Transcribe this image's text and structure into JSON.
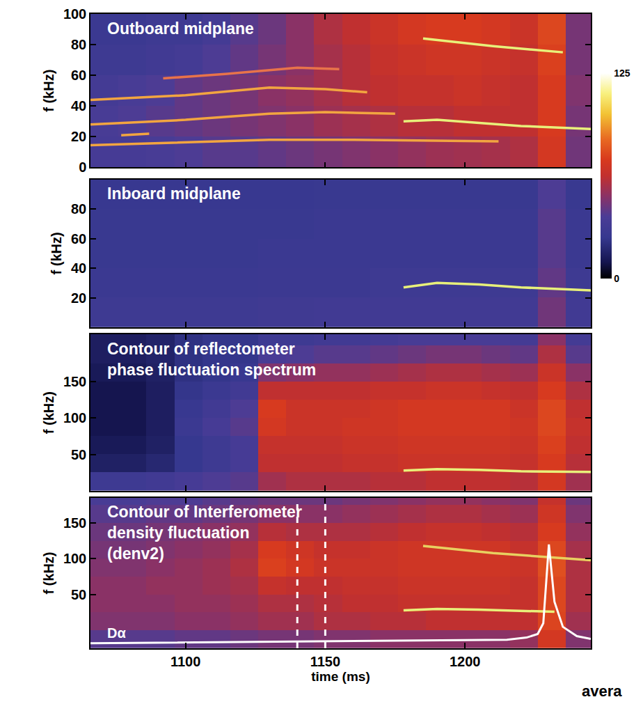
{
  "chart_data": [
    {
      "type": "heatmap",
      "title": "Outboard midplane",
      "y_label": "f (kHz)",
      "tick_labels": "y",
      "grid": false,
      "xlim": [
        1066,
        1245
      ],
      "xticks": [
        1100,
        1150,
        1200
      ],
      "ylim": [
        0,
        100
      ],
      "yticks": [
        0,
        20,
        40,
        60,
        80,
        100
      ],
      "colorbar_range": [
        0,
        125
      ],
      "colorbar_ticks": [
        0,
        125
      ],
      "x": [
        1071,
        1081,
        1091,
        1101,
        1111,
        1121,
        1131,
        1141,
        1151,
        1161,
        1171,
        1181,
        1191,
        1201,
        1211,
        1221,
        1231,
        1241
      ],
      "y": [
        10,
        30,
        50,
        70,
        90
      ],
      "z": [
        [
          35,
          35,
          36,
          38,
          40,
          40,
          42,
          44,
          46,
          48,
          50,
          52,
          54,
          55,
          56,
          58,
          70,
          45
        ],
        [
          36,
          38,
          40,
          42,
          44,
          46,
          48,
          50,
          54,
          56,
          58,
          60,
          60,
          62,
          62,
          62,
          72,
          46
        ],
        [
          34,
          36,
          38,
          42,
          44,
          46,
          50,
          52,
          56,
          60,
          62,
          64,
          64,
          66,
          64,
          62,
          72,
          48
        ],
        [
          30,
          30,
          32,
          34,
          38,
          42,
          46,
          50,
          56,
          60,
          64,
          66,
          68,
          68,
          66,
          64,
          74,
          46
        ],
        [
          28,
          28,
          30,
          30,
          34,
          40,
          44,
          50,
          58,
          62,
          66,
          70,
          72,
          72,
          70,
          66,
          76,
          46
        ]
      ],
      "series": [
        {
          "type": "line",
          "color": "#f2a540",
          "x": [
            1066,
            1100,
            1130,
            1160,
            1190,
            1212
          ],
          "values": [
            14.5,
            16.5,
            18,
            18,
            17.5,
            17
          ]
        },
        {
          "type": "line",
          "color": "#f2a540",
          "x": [
            1077,
            1087
          ],
          "values": [
            21,
            22
          ]
        },
        {
          "type": "line",
          "color": "#f2a540",
          "x": [
            1066,
            1100,
            1130,
            1150,
            1175
          ],
          "values": [
            28,
            31,
            35,
            36,
            35
          ]
        },
        {
          "type": "line",
          "color": "#e8f07a",
          "x": [
            1178,
            1190,
            1205,
            1220,
            1245
          ],
          "values": [
            30,
            31,
            29,
            27,
            25
          ]
        },
        {
          "type": "line",
          "color": "#f2a540",
          "x": [
            1066,
            1100,
            1130,
            1150,
            1165
          ],
          "values": [
            44,
            47,
            52,
            51,
            49
          ]
        },
        {
          "type": "line",
          "color": "#e8734a",
          "x": [
            1092,
            1115,
            1140,
            1155
          ],
          "values": [
            58,
            61,
            65,
            64
          ]
        },
        {
          "type": "line",
          "color": "#e8f07a",
          "x": [
            1185,
            1210,
            1235
          ],
          "values": [
            84,
            79,
            75
          ]
        }
      ]
    },
    {
      "type": "heatmap",
      "title": "Inboard midplane",
      "y_label": "f (kHz)",
      "tick_labels": "y",
      "grid": false,
      "xlim": [
        1066,
        1245
      ],
      "xticks": [
        1100,
        1150,
        1200
      ],
      "ylim": [
        0,
        100
      ],
      "yticks": [
        20,
        40,
        60,
        80
      ],
      "x": [
        1071,
        1081,
        1091,
        1101,
        1111,
        1121,
        1131,
        1141,
        1151,
        1161,
        1171,
        1181,
        1191,
        1201,
        1211,
        1221,
        1231,
        1241
      ],
      "y": [
        10,
        30,
        50,
        70,
        90
      ],
      "z": [
        [
          30,
          30,
          30,
          30,
          30,
          30,
          31,
          31,
          32,
          32,
          32,
          32,
          32,
          32,
          32,
          32,
          45,
          32
        ],
        [
          28,
          28,
          28,
          28,
          28,
          28,
          29,
          29,
          29,
          29,
          30,
          30,
          30,
          30,
          30,
          30,
          42,
          30
        ],
        [
          27,
          27,
          27,
          27,
          27,
          27,
          28,
          28,
          28,
          28,
          28,
          28,
          28,
          28,
          28,
          28,
          40,
          28
        ],
        [
          27,
          27,
          27,
          27,
          27,
          27,
          27,
          27,
          28,
          28,
          28,
          28,
          28,
          28,
          28,
          28,
          40,
          28
        ],
        [
          26,
          26,
          26,
          26,
          26,
          26,
          26,
          26,
          27,
          27,
          27,
          27,
          27,
          27,
          27,
          27,
          38,
          27
        ]
      ],
      "series": [
        {
          "type": "line",
          "color": "#e8f07a",
          "x": [
            1178,
            1190,
            1205,
            1220,
            1245
          ],
          "values": [
            27,
            30,
            29,
            27,
            25
          ]
        }
      ]
    },
    {
      "type": "heatmap",
      "title": "Contour of reflectometer phase fluctuation spectrum",
      "y_label": "f (kHz)",
      "tick_labels": "y",
      "grid": false,
      "xlim": [
        1066,
        1245
      ],
      "xticks": [
        1100,
        1150,
        1200
      ],
      "ylim": [
        0,
        215
      ],
      "yticks": [
        50,
        100,
        150
      ],
      "x": [
        1071,
        1081,
        1091,
        1101,
        1111,
        1121,
        1131,
        1141,
        1151,
        1161,
        1171,
        1181,
        1191,
        1201,
        1211,
        1221,
        1231,
        1241
      ],
      "y": [
        12.5,
        37.5,
        62.5,
        87.5,
        112.5,
        137.5,
        162.5,
        187.5,
        212.5
      ],
      "z": [
        [
          30,
          30,
          32,
          35,
          38,
          40,
          55,
          58,
          58,
          58,
          60,
          60,
          62,
          62,
          62,
          60,
          70,
          55
        ],
        [
          15,
          15,
          18,
          25,
          30,
          35,
          62,
          62,
          62,
          64,
          64,
          66,
          66,
          66,
          66,
          64,
          72,
          60
        ],
        [
          12,
          12,
          15,
          25,
          30,
          35,
          64,
          64,
          64,
          66,
          66,
          68,
          68,
          68,
          68,
          66,
          74,
          62
        ],
        [
          10,
          10,
          14,
          28,
          35,
          40,
          70,
          66,
          66,
          68,
          68,
          70,
          70,
          70,
          70,
          68,
          76,
          64
        ],
        [
          10,
          10,
          14,
          26,
          32,
          38,
          72,
          66,
          66,
          66,
          68,
          70,
          70,
          70,
          70,
          66,
          76,
          62
        ],
        [
          10,
          10,
          14,
          24,
          28,
          32,
          62,
          62,
          62,
          62,
          64,
          64,
          66,
          66,
          64,
          62,
          72,
          58
        ],
        [
          12,
          12,
          15,
          22,
          24,
          26,
          48,
          50,
          52,
          52,
          54,
          56,
          58,
          58,
          56,
          54,
          66,
          50
        ],
        [
          14,
          14,
          16,
          22,
          24,
          24,
          36,
          38,
          40,
          40,
          42,
          44,
          46,
          46,
          44,
          42,
          58,
          40
        ],
        [
          14,
          14,
          16,
          22,
          24,
          24,
          30,
          30,
          32,
          32,
          34,
          36,
          36,
          36,
          36,
          34,
          50,
          34
        ]
      ],
      "series": [
        {
          "type": "line",
          "color": "#e8f07a",
          "x": [
            1178,
            1190,
            1205,
            1220,
            1245
          ],
          "values": [
            28,
            30,
            29,
            27,
            26
          ]
        }
      ]
    },
    {
      "type": "heatmap",
      "title": "Contour of Interferometer density fluctuation (denv2)",
      "y_label": "f (kHz)",
      "x_label": "time (ms)",
      "grid": false,
      "xlim": [
        1066,
        1245
      ],
      "xticks": [
        1100,
        1150,
        1200
      ],
      "ylim": [
        -25,
        185
      ],
      "yticks": [
        50,
        100,
        150
      ],
      "x": [
        1071,
        1081,
        1091,
        1101,
        1111,
        1121,
        1131,
        1141,
        1151,
        1161,
        1171,
        1181,
        1191,
        1201,
        1211,
        1221,
        1231,
        1241
      ],
      "y": [
        -12.5,
        12.5,
        37.5,
        62.5,
        87.5,
        112.5,
        137.5,
        162.5,
        187.5
      ],
      "z": [
        [
          40,
          40,
          40,
          42,
          42,
          44,
          46,
          46,
          48,
          48,
          50,
          50,
          50,
          50,
          50,
          52,
          70,
          48
        ],
        [
          48,
          48,
          48,
          50,
          50,
          52,
          55,
          55,
          58,
          58,
          60,
          60,
          62,
          62,
          62,
          62,
          75,
          55
        ],
        [
          50,
          50,
          50,
          52,
          52,
          54,
          58,
          58,
          60,
          62,
          62,
          64,
          64,
          64,
          64,
          64,
          76,
          58
        ],
        [
          50,
          50,
          52,
          52,
          54,
          56,
          64,
          62,
          62,
          64,
          64,
          66,
          66,
          66,
          66,
          64,
          76,
          58
        ],
        [
          48,
          48,
          50,
          52,
          54,
          58,
          74,
          70,
          66,
          66,
          66,
          68,
          68,
          68,
          68,
          66,
          78,
          58
        ],
        [
          46,
          46,
          48,
          50,
          52,
          56,
          72,
          68,
          64,
          64,
          66,
          68,
          68,
          68,
          68,
          64,
          76,
          56
        ],
        [
          44,
          44,
          46,
          48,
          50,
          52,
          60,
          58,
          58,
          58,
          60,
          62,
          64,
          64,
          62,
          60,
          72,
          52
        ],
        [
          40,
          40,
          42,
          42,
          44,
          46,
          50,
          50,
          50,
          52,
          54,
          56,
          58,
          58,
          56,
          54,
          68,
          48
        ],
        [
          36,
          36,
          38,
          38,
          40,
          42,
          44,
          44,
          44,
          46,
          48,
          50,
          52,
          52,
          50,
          48,
          64,
          44
        ]
      ],
      "vlines": [
        1140,
        1150
      ],
      "line_style": "dashed",
      "annotations": [
        "avera"
      ],
      "series": [
        {
          "type": "line",
          "color": "#e8f07a",
          "x": [
            1178,
            1190,
            1205,
            1220,
            1232
          ],
          "values": [
            28,
            30,
            29,
            27,
            26
          ]
        },
        {
          "type": "line",
          "color": "#e8d060",
          "x": [
            1185,
            1210,
            1245
          ],
          "values": [
            118,
            108,
            98
          ]
        },
        {
          "type": "line",
          "name": "Dα",
          "color": "#ffffff",
          "x": [
            1066,
            1100,
            1150,
            1200,
            1215,
            1222,
            1226,
            1228,
            1230,
            1232,
            1235,
            1240,
            1245
          ],
          "values": [
            -18,
            -17,
            -15,
            -14,
            -13,
            -10,
            -5,
            10,
            120,
            40,
            5,
            -8,
            -12
          ]
        }
      ]
    }
  ]
}
